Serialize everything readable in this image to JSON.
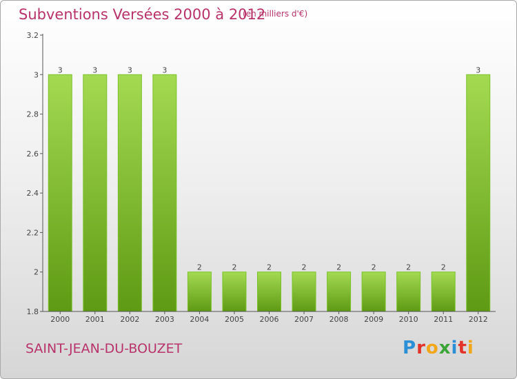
{
  "header": {
    "title": "Subventions Versées 2000 à 2012",
    "unit": "(en milliers d'€)"
  },
  "footer": {
    "commune": "SAINT-JEAN-DU-BOUZET",
    "brand": "Proxiti"
  },
  "colors": {
    "accent": "#b8336a",
    "bar_light": "#9ed64e",
    "bar_dark": "#5f9a14",
    "axis": "#555555"
  },
  "chart_data": {
    "type": "bar",
    "categories": [
      "2000",
      "2001",
      "2002",
      "2003",
      "2004",
      "2005",
      "2006",
      "2007",
      "2008",
      "2009",
      "2010",
      "2011",
      "2012"
    ],
    "values": [
      3,
      3,
      3,
      3,
      2,
      2,
      2,
      2,
      2,
      2,
      2,
      2,
      3
    ],
    "data_labels": [
      "3",
      "3",
      "3",
      "3",
      "2",
      "2",
      "2",
      "2",
      "2",
      "2",
      "2",
      "2",
      "3"
    ],
    "y_ticks": [
      "1.8",
      "2",
      "2.2",
      "2.4",
      "2.6",
      "2.8",
      "3",
      "3.2"
    ],
    "ylim": [
      1.8,
      3.2
    ],
    "title": "Subventions Versées 2000 à 2012",
    "xlabel": "",
    "ylabel": "",
    "grid": false,
    "legend": "none"
  }
}
